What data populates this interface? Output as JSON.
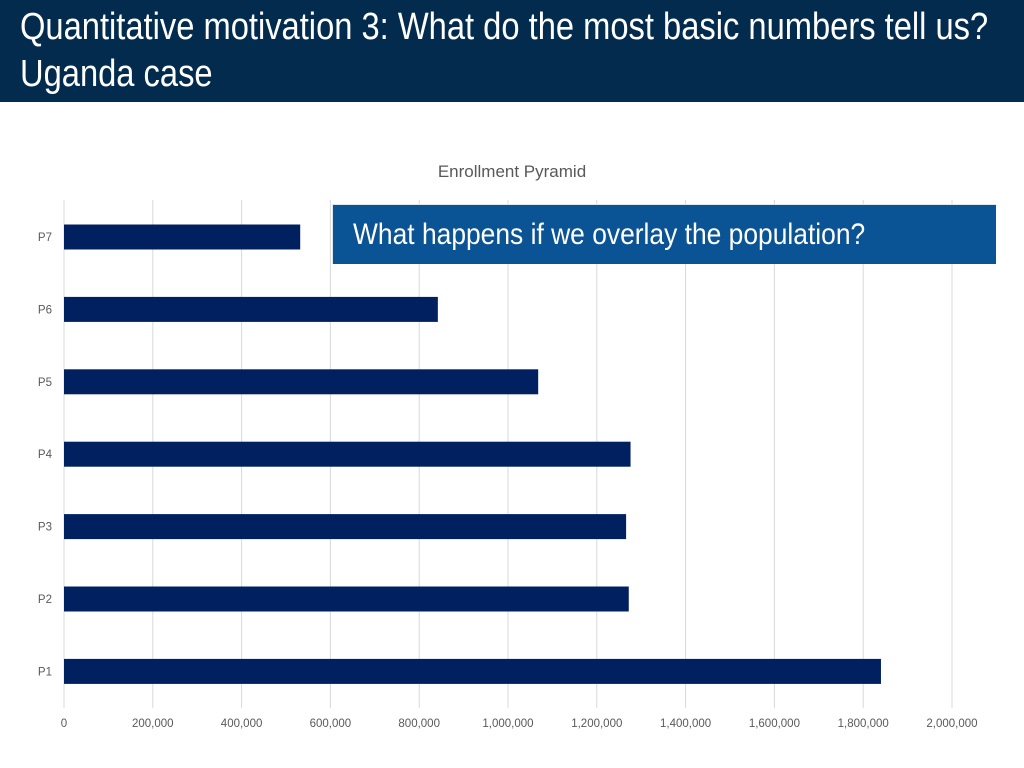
{
  "slide": {
    "title": "Quantitative motivation 3: What do the most basic numbers tell us? Uganda case",
    "title_bar_color": "#022b4e"
  },
  "callout": {
    "text": "What happens if we overlay the population?",
    "background_color": "#0a5394"
  },
  "chart_data": {
    "type": "bar",
    "orientation": "horizontal",
    "title": "Enrollment Pyramid",
    "xlabel": "",
    "ylabel": "",
    "categories": [
      "P7",
      "P6",
      "P5",
      "P4",
      "P3",
      "P2",
      "P1"
    ],
    "values": [
      532000,
      842000,
      1068000,
      1276000,
      1266000,
      1272000,
      1840000
    ],
    "xlim": [
      0,
      2100000
    ],
    "xticks": [
      0,
      200000,
      400000,
      600000,
      800000,
      1000000,
      1200000,
      1400000,
      1600000,
      1800000,
      2000000
    ],
    "xtick_labels": [
      "0",
      "200,000",
      "400,000",
      "600,000",
      "800,000",
      "1,000,000",
      "1,200,000",
      "1,400,000",
      "1,600,000",
      "1,800,000",
      "2,000,000"
    ],
    "bar_color": "#002060",
    "grid": "vertical",
    "legend": "none"
  }
}
